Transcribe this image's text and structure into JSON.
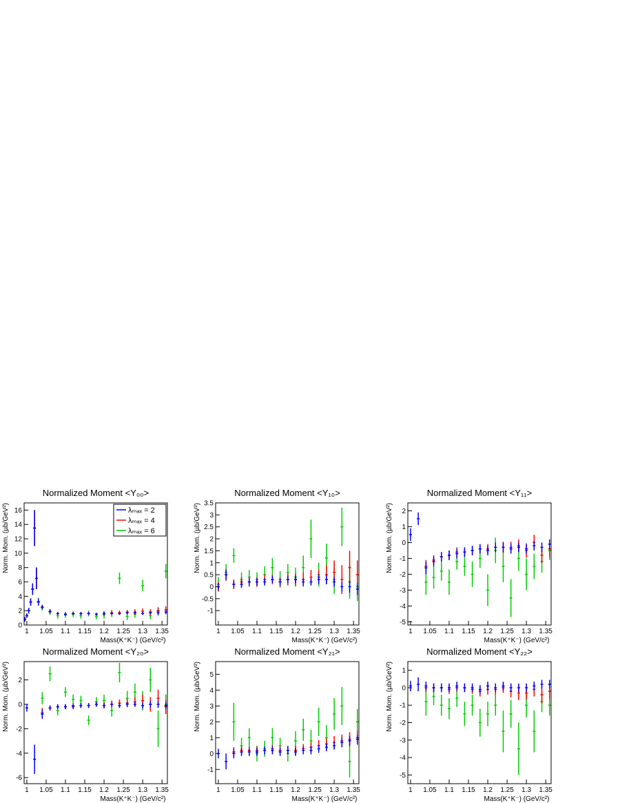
{
  "chart_data": [
    {
      "type": "errorbar",
      "title": "Normalized Moment <Y₀₀>",
      "x_label": "Mass(K⁺K⁻) (GeV/c²)",
      "y_label": "Norm. Mom. (µb/GeV²)",
      "legend": "top-right",
      "xlim": [
        0.993,
        1.364
      ],
      "xticks": [
        1,
        1.05,
        1.1,
        1.15,
        1.2,
        1.25,
        1.3,
        1.35
      ],
      "ylim": [
        0,
        17
      ],
      "yticks": [
        0,
        2,
        4,
        6,
        8,
        10,
        12,
        14,
        16
      ],
      "x": [
        0.995,
        1.0,
        1.005,
        1.01,
        1.015,
        1.02,
        1.025,
        1.03,
        1.04,
        1.06,
        1.08,
        1.1,
        1.12,
        1.14,
        1.16,
        1.18,
        1.2,
        1.22,
        1.24,
        1.26,
        1.28,
        1.3,
        1.32,
        1.34,
        1.36
      ],
      "series": [
        {
          "name": "λₘₐₓ = 2",
          "color": "#0000ff",
          "values": [
            0.8,
            1.3,
            2,
            3.2,
            5,
            13.5,
            6.5,
            3.2,
            2.5,
            1.9,
            1.6,
            1.5,
            1.6,
            1.6,
            1.6,
            1.5,
            1.6,
            1.6,
            1.6,
            1.7,
            1.7,
            1.6,
            1.7,
            1.7,
            1.8
          ],
          "errors": [
            0.3,
            0.3,
            0.4,
            0.5,
            0.8,
            2.5,
            1.5,
            0.5,
            0.3,
            0.3,
            0.2,
            0.2,
            0.2,
            0.2,
            0.2,
            0.2,
            0.2,
            0.2,
            0.2,
            0.2,
            0.2,
            0.2,
            0.2,
            0.3,
            0.3
          ]
        },
        {
          "name": "λₘₐₓ = 4",
          "color": "#ff0000",
          "values": [
            0.8,
            1.3,
            2,
            3.2,
            5,
            13.5,
            6.5,
            3.2,
            2.5,
            1.9,
            1.6,
            1.5,
            1.6,
            1.6,
            1.6,
            1.5,
            1.6,
            1.7,
            1.7,
            1.8,
            1.8,
            1.9,
            1.8,
            2,
            2.1
          ],
          "errors": [
            0.3,
            0.3,
            0.4,
            0.5,
            0.8,
            2.5,
            1.5,
            0.5,
            0.3,
            0.3,
            0.2,
            0.2,
            0.2,
            0.2,
            0.2,
            0.2,
            0.3,
            0.3,
            0.3,
            0.3,
            0.4,
            0.4,
            0.4,
            0.4,
            0.5
          ]
        },
        {
          "name": "λₘₐₓ = 6",
          "color": "#00cc00",
          "values": [
            0.8,
            1.3,
            2,
            3.2,
            5,
            13.5,
            6.5,
            3.3,
            2.4,
            1.8,
            1.3,
            1.4,
            1.5,
            1.3,
            1.6,
            1.2,
            1.4,
            1.6,
            6.5,
            1.2,
            1.5,
            5.5,
            1.3,
            1.9,
            7.5
          ],
          "errors": [
            0.3,
            0.3,
            0.4,
            0.5,
            0.8,
            2.5,
            1.5,
            0.5,
            0.4,
            0.4,
            0.4,
            0.4,
            0.4,
            0.4,
            0.4,
            0.4,
            0.5,
            0.5,
            0.8,
            0.5,
            0.5,
            0.8,
            0.5,
            0.6,
            1
          ]
        }
      ]
    },
    {
      "type": "errorbar",
      "title": "Normalized Moment <Y₁₀>",
      "x_label": "Mass(K⁺K⁻) (GeV/c²)",
      "y_label": "Norm. Mom. (µb/GeV²)",
      "xlim": [
        0.993,
        1.364
      ],
      "xticks": [
        1,
        1.05,
        1.1,
        1.15,
        1.2,
        1.25,
        1.3,
        1.35
      ],
      "ylim": [
        -1.6,
        3.5
      ],
      "yticks": [
        -1,
        -0.5,
        0,
        0.5,
        1,
        1.5,
        2,
        2.5,
        3,
        3.5
      ],
      "x": [
        1,
        1.02,
        1.04,
        1.06,
        1.08,
        1.1,
        1.12,
        1.14,
        1.16,
        1.18,
        1.2,
        1.22,
        1.24,
        1.26,
        1.28,
        1.3,
        1.32,
        1.34,
        1.36
      ],
      "series": [
        {
          "color": "#0000ff",
          "values": [
            0,
            0.5,
            0.1,
            0.1,
            0.2,
            0.2,
            0.2,
            0.3,
            0.2,
            0.3,
            0.3,
            0.2,
            0.2,
            0.3,
            0.3,
            0.2,
            0,
            0,
            -0.1
          ],
          "errors": [
            0.15,
            0.2,
            0.15,
            0.15,
            0.15,
            0.15,
            0.15,
            0.15,
            0.15,
            0.15,
            0.15,
            0.15,
            0.15,
            0.2,
            0.2,
            0.2,
            0.2,
            0.25,
            0.25
          ]
        },
        {
          "color": "#ff0000",
          "values": [
            0,
            0.5,
            0.1,
            0.2,
            0.2,
            0.2,
            0.3,
            0.3,
            0.2,
            0.3,
            0.3,
            0.3,
            0.4,
            0.4,
            0.5,
            0.6,
            0.3,
            0.8,
            0.5
          ],
          "errors": [
            0.2,
            0.25,
            0.2,
            0.2,
            0.2,
            0.2,
            0.2,
            0.2,
            0.2,
            0.25,
            0.25,
            0.3,
            0.3,
            0.3,
            0.4,
            0.5,
            0.6,
            0.7,
            0.6
          ]
        },
        {
          "color": "#00cc00",
          "values": [
            0.1,
            0.6,
            1.3,
            0.3,
            0.4,
            0.3,
            0.5,
            0.8,
            0.3,
            0.6,
            0.4,
            0.8,
            2,
            0.5,
            1.2,
            0.3,
            2.5,
            0.2,
            0
          ],
          "errors": [
            0.3,
            0.35,
            0.3,
            0.3,
            0.3,
            0.3,
            0.35,
            0.4,
            0.35,
            0.35,
            0.4,
            0.5,
            0.8,
            0.5,
            0.6,
            0.6,
            0.8,
            0.7,
            0.6
          ]
        }
      ]
    },
    {
      "type": "errorbar",
      "title": "Normalized Moment <Y₁₁>",
      "x_label": "Mass(K⁺K⁻) (GeV/c²)",
      "y_label": "Norm. Mom. (µb/GeV²)",
      "xlim": [
        0.993,
        1.364
      ],
      "xticks": [
        1,
        1.05,
        1.1,
        1.15,
        1.2,
        1.25,
        1.3,
        1.35
      ],
      "ylim": [
        -5.2,
        2.5
      ],
      "yticks": [
        -5,
        -4,
        -3,
        -2,
        -1,
        0,
        1,
        2
      ],
      "x": [
        1,
        1.02,
        1.04,
        1.06,
        1.08,
        1.1,
        1.12,
        1.14,
        1.16,
        1.18,
        1.2,
        1.22,
        1.24,
        1.26,
        1.28,
        1.3,
        1.32,
        1.34,
        1.36
      ],
      "series": [
        {
          "color": "#0000ff",
          "values": [
            0.5,
            1.5,
            -1.6,
            -1.2,
            -0.9,
            -0.8,
            -0.7,
            -0.6,
            -0.5,
            -0.4,
            -0.5,
            -0.3,
            -0.3,
            -0.4,
            -0.3,
            -0.4,
            -0.2,
            -0.3,
            -0.1
          ],
          "errors": [
            0.4,
            0.4,
            0.4,
            0.3,
            0.3,
            0.3,
            0.3,
            0.3,
            0.3,
            0.3,
            0.3,
            0.3,
            0.3,
            0.3,
            0.3,
            0.3,
            0.3,
            0.3,
            0.3
          ]
        },
        {
          "color": "#ff0000",
          "values": [
            null,
            null,
            -1.5,
            -1.1,
            -0.9,
            -0.8,
            -0.6,
            -0.6,
            -0.5,
            -0.4,
            -0.4,
            -0.3,
            -0.3,
            -0.3,
            -0.2,
            -0.5,
            0,
            -0.8,
            -0.4
          ],
          "errors": [
            null,
            null,
            0.4,
            0.3,
            0.3,
            0.3,
            0.3,
            0.3,
            0.3,
            0.3,
            0.3,
            0.3,
            0.35,
            0.35,
            0.4,
            0.45,
            0.5,
            0.5,
            0.5
          ]
        },
        {
          "color": "#00cc00",
          "values": [
            null,
            null,
            -2.5,
            -2.2,
            -1.8,
            -2.5,
            -1.2,
            -1.5,
            -2,
            -1,
            -3,
            -0.5,
            -1.5,
            -3.5,
            -1,
            -2,
            -1.5,
            -1.2,
            -0.5
          ],
          "errors": [
            null,
            null,
            0.8,
            0.7,
            0.6,
            0.8,
            0.5,
            0.6,
            0.8,
            0.6,
            1,
            0.8,
            1,
            1.2,
            0.8,
            1,
            0.8,
            0.7,
            0.6
          ]
        }
      ]
    },
    {
      "type": "errorbar",
      "title": "Normalized Moment <Y₂₀>",
      "x_label": "Mass(K⁺K⁻) (GeV/c²)",
      "y_label": "Norm. Mom. (µb/GeV²)",
      "xlim": [
        0.993,
        1.364
      ],
      "xticks": [
        1,
        1.05,
        1.1,
        1.15,
        1.2,
        1.25,
        1.3,
        1.35
      ],
      "ylim": [
        -6.5,
        3.5
      ],
      "yticks": [
        -6,
        -4,
        -2,
        0,
        2
      ],
      "x": [
        1,
        1.02,
        1.04,
        1.06,
        1.08,
        1.1,
        1.12,
        1.14,
        1.16,
        1.18,
        1.2,
        1.22,
        1.24,
        1.26,
        1.28,
        1.3,
        1.32,
        1.34,
        1.36
      ],
      "series": [
        {
          "color": "#0000ff",
          "values": [
            -0.3,
            -4.5,
            -0.8,
            -0.3,
            -0.2,
            -0.2,
            -0.2,
            -0.1,
            -0.1,
            0,
            -0.1,
            0,
            -0.1,
            0,
            0,
            -0.1,
            0,
            0,
            -0.1
          ],
          "errors": [
            0.3,
            1.2,
            0.4,
            0.2,
            0.2,
            0.2,
            0.2,
            0.2,
            0.2,
            0.2,
            0.2,
            0.2,
            0.2,
            0.2,
            0.2,
            0.25,
            0.3,
            0.3,
            0.3
          ]
        },
        {
          "color": "#ff0000",
          "values": [
            null,
            null,
            -0.7,
            -0.3,
            -0.2,
            -0.2,
            -0.1,
            -0.1,
            -0.1,
            0,
            -0.1,
            0,
            0.1,
            0.1,
            0.2,
            0.3,
            0,
            0.5,
            -0.2
          ],
          "errors": [
            null,
            null,
            0.4,
            0.2,
            0.2,
            0.2,
            0.2,
            0.2,
            0.2,
            0.2,
            0.25,
            0.3,
            0.3,
            0.35,
            0.4,
            0.5,
            0.6,
            0.7,
            0.6
          ]
        },
        {
          "color": "#00cc00",
          "values": [
            null,
            null,
            0.5,
            2.5,
            -0.5,
            1,
            0.4,
            0.3,
            -1.3,
            0.2,
            0.3,
            -0.5,
            2.6,
            0.5,
            1,
            0.3,
            2,
            -2,
            0
          ],
          "errors": [
            null,
            null,
            0.5,
            0.6,
            0.4,
            0.4,
            0.4,
            0.4,
            0.4,
            0.4,
            0.5,
            0.5,
            0.8,
            0.6,
            0.7,
            0.8,
            1,
            1.5,
            0.8
          ]
        }
      ]
    },
    {
      "type": "errorbar",
      "title": "Normalized Moment <Y₂₁>",
      "x_label": "Mass(K⁺K⁻) (GeV/c²)",
      "y_label": "Norm. Mom. (µb/GeV²)",
      "xlim": [
        0.993,
        1.364
      ],
      "xticks": [
        1,
        1.05,
        1.1,
        1.15,
        1.2,
        1.25,
        1.3,
        1.35
      ],
      "ylim": [
        -1.9,
        5.8
      ],
      "yticks": [
        -1,
        0,
        1,
        2,
        3,
        4,
        5
      ],
      "x": [
        1,
        1.02,
        1.04,
        1.06,
        1.08,
        1.1,
        1.12,
        1.14,
        1.16,
        1.18,
        1.2,
        1.22,
        1.24,
        1.26,
        1.28,
        1.3,
        1.32,
        1.34,
        1.36
      ],
      "series": [
        {
          "color": "#0000ff",
          "values": [
            0,
            -0.5,
            0,
            0.1,
            0.1,
            0.1,
            0.2,
            0.2,
            0.1,
            0.2,
            0.1,
            0.2,
            0.2,
            0.3,
            0.4,
            0.5,
            0.7,
            0.8,
            0.9
          ],
          "errors": [
            0.3,
            0.5,
            0.3,
            0.25,
            0.25,
            0.25,
            0.25,
            0.25,
            0.25,
            0.25,
            0.25,
            0.25,
            0.25,
            0.25,
            0.25,
            0.25,
            0.3,
            0.3,
            0.3
          ]
        },
        {
          "color": "#ff0000",
          "values": [
            null,
            null,
            0.1,
            0.2,
            0.2,
            0.2,
            0.2,
            0.3,
            0.2,
            0.2,
            0.2,
            0.3,
            0.4,
            0.5,
            0.6,
            0.7,
            0.8,
            0.9,
            1
          ],
          "errors": [
            null,
            null,
            0.3,
            0.25,
            0.25,
            0.25,
            0.25,
            0.25,
            0.25,
            0.25,
            0.3,
            0.3,
            0.3,
            0.35,
            0.35,
            0.4,
            0.4,
            0.45,
            0.45
          ]
        },
        {
          "color": "#00cc00",
          "values": [
            null,
            null,
            2,
            0.5,
            1,
            0,
            0.3,
            1,
            0.5,
            0,
            0.8,
            1.5,
            0.8,
            2,
            1,
            2.5,
            3,
            -0.5,
            2
          ],
          "errors": [
            null,
            null,
            1.2,
            0.5,
            0.6,
            0.5,
            0.5,
            0.6,
            0.5,
            0.5,
            0.6,
            0.7,
            0.7,
            0.9,
            0.8,
            1,
            1.2,
            1,
            0.8
          ]
        }
      ]
    },
    {
      "type": "errorbar",
      "title": "Normalized Moment <Y₂₂>",
      "x_label": "Mass(K⁺K⁻) (GeV/c²)",
      "y_label": "Norm. Mom. (µb/GeV²)",
      "xlim": [
        0.993,
        1.364
      ],
      "xticks": [
        1,
        1.05,
        1.1,
        1.15,
        1.2,
        1.25,
        1.3,
        1.35
      ],
      "ylim": [
        -5.5,
        1.5
      ],
      "yticks": [
        -5,
        -4,
        -3,
        -2,
        -1,
        0,
        1
      ],
      "x": [
        1,
        1.02,
        1.04,
        1.06,
        1.08,
        1.1,
        1.12,
        1.14,
        1.16,
        1.18,
        1.2,
        1.22,
        1.24,
        1.26,
        1.28,
        1.3,
        1.32,
        1.34,
        1.36
      ],
      "series": [
        {
          "color": "#0000ff",
          "values": [
            0.1,
            0.2,
            0.1,
            0,
            0,
            0,
            0.1,
            0,
            0,
            -0.1,
            0.1,
            0,
            0.1,
            0,
            0,
            0,
            0.1,
            0.2,
            0.2
          ],
          "errors": [
            0.3,
            0.4,
            0.25,
            0.25,
            0.25,
            0.25,
            0.25,
            0.25,
            0.25,
            0.25,
            0.25,
            0.25,
            0.25,
            0.25,
            0.25,
            0.25,
            0.25,
            0.25,
            0.25
          ]
        },
        {
          "color": "#ff0000",
          "values": [
            null,
            null,
            0,
            0,
            0,
            -0.1,
            0,
            0,
            -0.1,
            -0.2,
            -0.1,
            -0.1,
            0,
            -0.2,
            -0.3,
            -0.3,
            -0.1,
            -0.4,
            -0.2
          ],
          "errors": [
            null,
            null,
            0.25,
            0.25,
            0.25,
            0.25,
            0.25,
            0.25,
            0.25,
            0.3,
            0.3,
            0.3,
            0.3,
            0.35,
            0.4,
            0.4,
            0.4,
            0.5,
            0.45
          ]
        },
        {
          "color": "#00cc00",
          "values": [
            null,
            null,
            -0.8,
            -0.5,
            -1,
            -1.2,
            -0.6,
            -1.5,
            -1,
            -2,
            -1.5,
            -1,
            -2.5,
            -1.5,
            -3.5,
            -1,
            -2.5,
            -0.8,
            -1
          ],
          "errors": [
            null,
            null,
            0.8,
            0.5,
            0.6,
            0.6,
            0.5,
            0.7,
            0.6,
            0.8,
            0.7,
            0.6,
            1.2,
            0.8,
            1.5,
            0.7,
            1.2,
            0.6,
            0.6
          ]
        }
      ]
    }
  ]
}
